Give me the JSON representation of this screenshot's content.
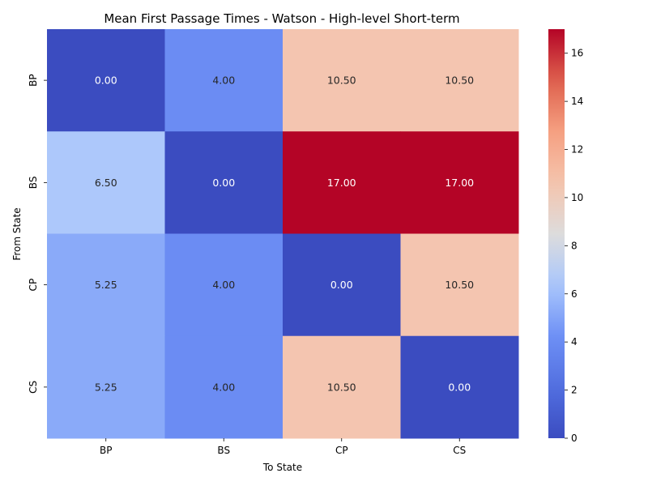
{
  "chart_data": {
    "type": "heatmap",
    "title": "Mean First Passage Times - Watson - High-level Short-term",
    "xlabel": "To State",
    "ylabel": "From State",
    "x_categories": [
      "BP",
      "BS",
      "CP",
      "CS"
    ],
    "y_categories": [
      "BP",
      "BS",
      "CP",
      "CS"
    ],
    "values": [
      [
        0.0,
        4.0,
        10.5,
        10.5
      ],
      [
        6.5,
        0.0,
        17.0,
        17.0
      ],
      [
        5.25,
        4.0,
        0.0,
        10.5
      ],
      [
        5.25,
        4.0,
        10.5,
        0.0
      ]
    ],
    "value_labels": [
      [
        "0.00",
        "4.00",
        "10.50",
        "10.50"
      ],
      [
        "6.50",
        "0.00",
        "17.00",
        "17.00"
      ],
      [
        "5.25",
        "4.00",
        "0.00",
        "10.50"
      ],
      [
        "5.25",
        "4.00",
        "10.50",
        "0.00"
      ]
    ],
    "colormap": "coolwarm",
    "colorbar": {
      "min": 0,
      "max": 17,
      "ticks": [
        0,
        2,
        4,
        6,
        8,
        10,
        12,
        14,
        16
      ]
    }
  }
}
